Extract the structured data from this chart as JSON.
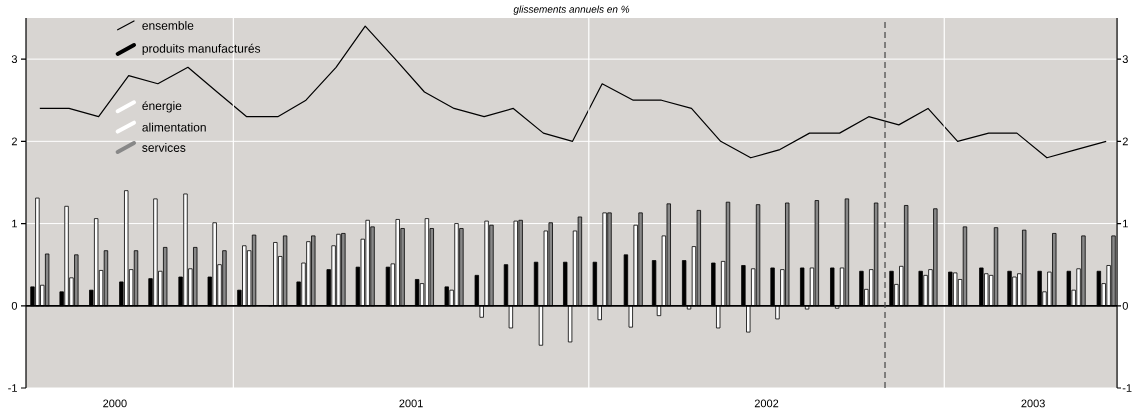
{
  "chart_data": {
    "type": "bar",
    "title": "glissements annuels en %",
    "x": [
      "2000-06-15",
      "2000-07-15",
      "2000-08-15",
      "2000-09-15",
      "2000-10-15",
      "2000-11-15",
      "2000-12-15",
      "2001-01-15",
      "2001-02-15",
      "2001-03-15",
      "2001-04-15",
      "2001-05-15",
      "2001-06-15",
      "2001-07-15",
      "2001-08-15",
      "2001-09-15",
      "2001-10-15",
      "2001-11-15",
      "2001-12-15",
      "2002-01-15",
      "2002-02-15",
      "2002-03-15",
      "2002-04-15",
      "2002-05-15",
      "2002-06-15",
      "2002-07-15",
      "2002-08-15",
      "2002-09-15",
      "2002-10-15",
      "2002-11-15",
      "2002-12-15",
      "2003-01-15",
      "2003-02-15",
      "2003-03-15",
      "2003-04-15",
      "2003-05-15",
      "2003-06-15"
    ],
    "series": [
      {
        "name": "ensemble",
        "type": "line",
        "color": "#000000",
        "values": [
          2.4,
          2.4,
          2.3,
          2.8,
          2.7,
          2.9,
          2.6,
          2.3,
          2.3,
          2.5,
          2.9,
          3.4,
          3.0,
          2.6,
          2.4,
          2.3,
          2.4,
          2.1,
          2.0,
          2.7,
          2.5,
          2.5,
          2.4,
          2.0,
          1.8,
          1.9,
          2.1,
          2.1,
          2.3,
          2.2,
          2.4,
          2.0,
          2.1,
          2.1,
          1.8,
          1.9,
          2.0
        ]
      },
      {
        "name": "produits manufacturés",
        "color": "#000000",
        "values": [
          0.23,
          0.17,
          0.19,
          0.29,
          0.33,
          0.35,
          0.35,
          0.19,
          0.0,
          0.29,
          0.44,
          0.47,
          0.47,
          0.32,
          0.23,
          0.37,
          0.5,
          0.53,
          0.53,
          0.53,
          0.62,
          0.55,
          0.55,
          0.52,
          0.49,
          0.46,
          0.46,
          0.46,
          0.42,
          0.42,
          0.42,
          0.41,
          0.46,
          0.42,
          0.42,
          0.42,
          0.42
        ]
      },
      {
        "name": "énergie",
        "color": "#ffffff",
        "values": [
          1.31,
          1.21,
          1.06,
          1.4,
          1.3,
          1.36,
          1.01,
          0.73,
          0.77,
          0.52,
          0.73,
          0.81,
          0.51,
          0.27,
          0.19,
          -0.14,
          -0.27,
          -0.48,
          -0.44,
          -0.17,
          -0.26,
          -0.12,
          -0.04,
          -0.27,
          -0.32,
          -0.16,
          -0.04,
          -0.03,
          0.2,
          0.26,
          0.37,
          0.4,
          0.39,
          0.35,
          0.17,
          0.19,
          0.27
        ]
      },
      {
        "name": "alimentation",
        "color": "#ffffff",
        "values": [
          0.25,
          0.34,
          0.43,
          0.44,
          0.42,
          0.45,
          0.5,
          0.67,
          0.6,
          0.78,
          0.87,
          1.04,
          1.05,
          1.06,
          1.0,
          1.03,
          1.03,
          0.91,
          0.91,
          1.13,
          0.98,
          0.85,
          0.72,
          0.54,
          0.45,
          0.44,
          0.46,
          0.46,
          0.44,
          0.48,
          0.44,
          0.32,
          0.37,
          0.39,
          0.41,
          0.45,
          0.49
        ]
      },
      {
        "name": "services",
        "color": "#888888",
        "values": [
          0.63,
          0.62,
          0.67,
          0.67,
          0.71,
          0.71,
          0.67,
          0.86,
          0.85,
          0.85,
          0.88,
          0.96,
          0.94,
          0.94,
          0.94,
          0.98,
          1.04,
          1.01,
          1.08,
          1.13,
          1.13,
          1.24,
          1.16,
          1.26,
          1.23,
          1.25,
          1.28,
          1.3,
          1.25,
          1.22,
          1.18,
          0.96,
          0.95,
          0.92,
          0.88,
          0.85,
          0.85
        ]
      }
    ],
    "xlim": [
      "2000-06-01",
      "2003-06-26"
    ],
    "xticks": [
      {
        "value": "2000-09-01",
        "label": "2000"
      },
      {
        "value": "2001-07-01",
        "label": "2001"
      },
      {
        "value": "2002-07-01",
        "label": "2002"
      },
      {
        "value": "2003-04-01",
        "label": "2003"
      }
    ],
    "ylim": [
      -1,
      3.5
    ],
    "yticks": [
      -1,
      0,
      1,
      2,
      3
    ],
    "y2lim": [
      -1,
      3.5
    ],
    "y2ticks": [
      -1,
      0,
      1,
      2,
      3
    ],
    "ref_lines": [
      {
        "axis": "x",
        "value": "2001-01-01",
        "color": "#ffffff"
      },
      {
        "axis": "x",
        "value": "2002-01-01",
        "color": "#ffffff"
      },
      {
        "axis": "x",
        "value": "2003-01-01",
        "color": "#ffffff"
      },
      {
        "axis": "y",
        "value": 0,
        "color": "#000000"
      },
      {
        "axis": "x",
        "value": "2002-11-01",
        "color": "#444444",
        "line_style": "dashed"
      }
    ],
    "grid": "y",
    "legend": "top left"
  }
}
